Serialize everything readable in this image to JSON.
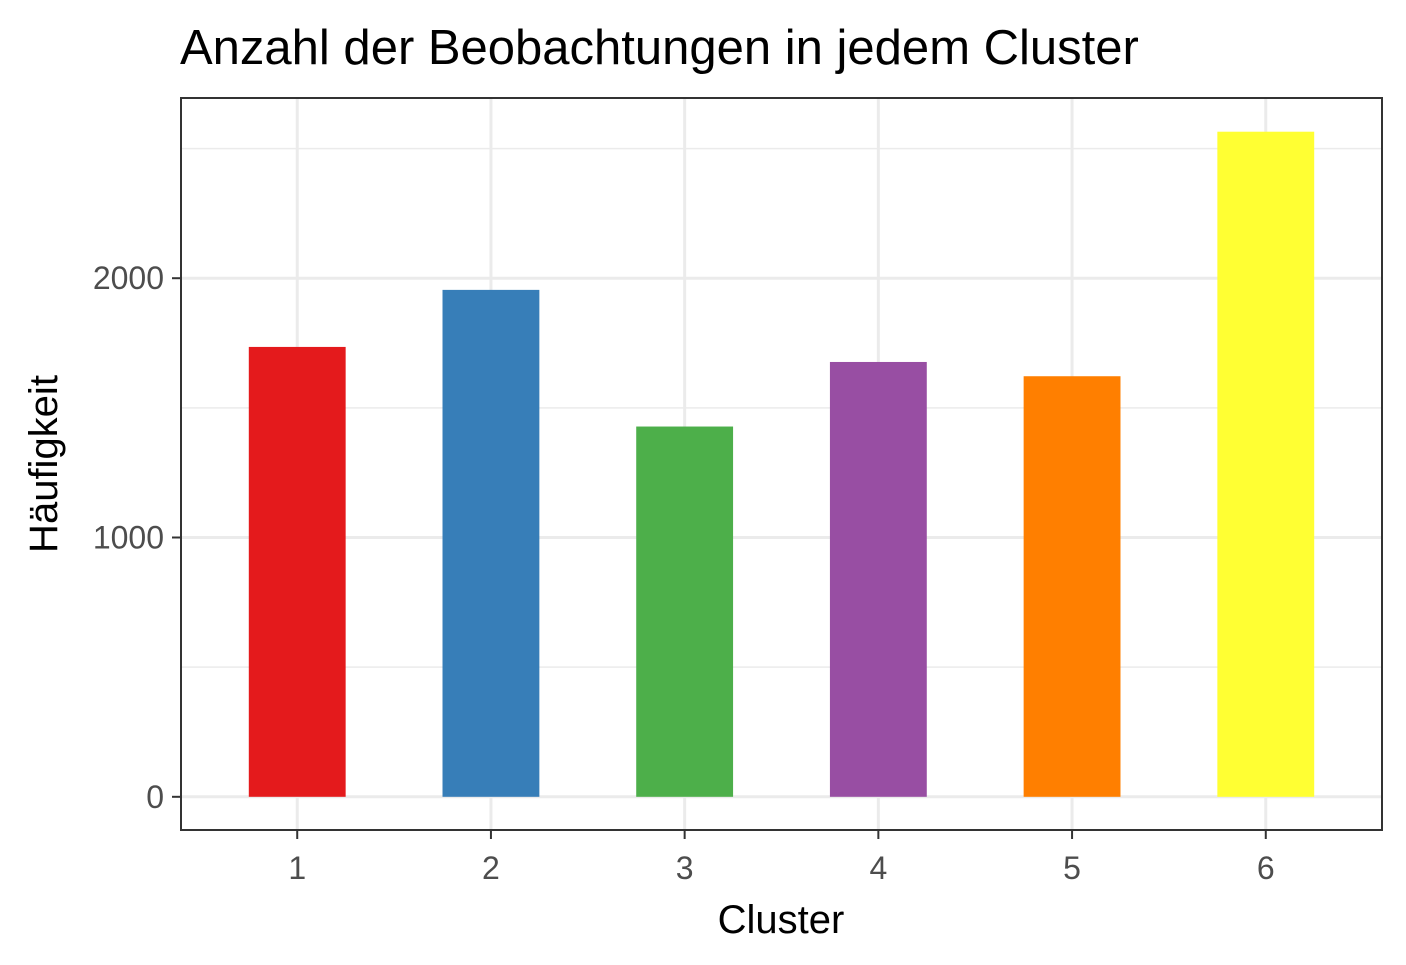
{
  "chart_data": {
    "type": "bar",
    "title": "Anzahl der Beobachtungen in jedem Cluster",
    "xlabel": "Cluster",
    "ylabel": "Häufigkeit",
    "categories": [
      "1",
      "2",
      "3",
      "4",
      "5",
      "6"
    ],
    "values": [
      1735,
      1955,
      1428,
      1677,
      1622,
      2565
    ],
    "colors": [
      "#E41A1C",
      "#377EB8",
      "#4DAF4A",
      "#984EA3",
      "#FF7F00",
      "#FFFF33"
    ],
    "ylim": [
      -128,
      2695
    ],
    "yticks": [
      0,
      1000,
      2000
    ],
    "yticks_minor": [
      500,
      1500,
      2500
    ],
    "grid": true,
    "legend": "none",
    "theme": {
      "panel_border": "#333333",
      "grid_color": "#ebebeb",
      "tick_color": "#333333",
      "tick_label_color": "#4d4d4d"
    }
  }
}
